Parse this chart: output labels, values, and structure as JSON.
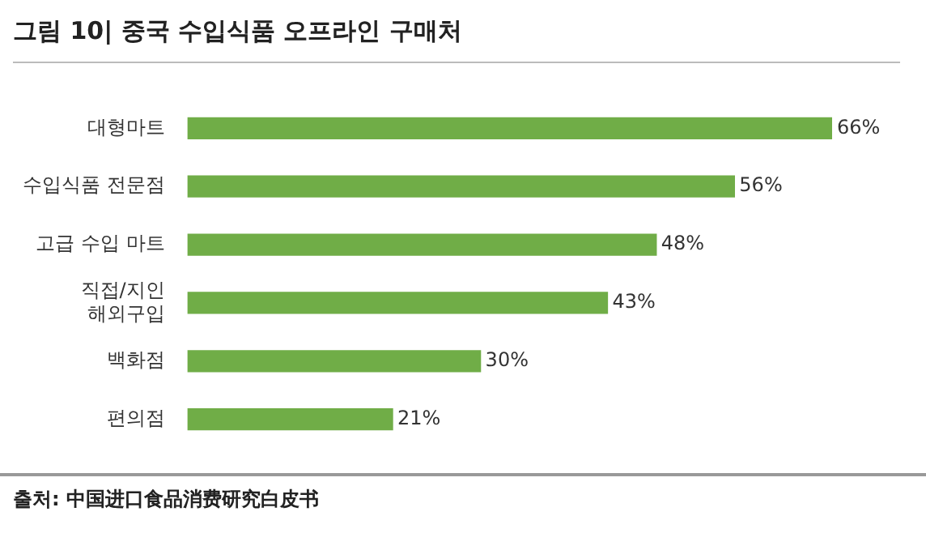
{
  "chart_data": {
    "type": "bar",
    "orientation": "horizontal",
    "title": "그림 10| 중국 수입식품 오프라인 구매처",
    "categories": [
      "대형마트",
      "수입식품 전문점",
      "고급 수입 마트",
      "직접/지인 해외구입",
      "백화점",
      "편의점"
    ],
    "values": [
      66,
      56,
      48,
      43,
      30,
      21
    ],
    "value_labels": [
      "66%",
      "56%",
      "48%",
      "43%",
      "30%",
      "21%"
    ],
    "color": "#70ad47",
    "annotations": [
      "출처: 中国进口食品消费研究白皮书"
    ]
  }
}
